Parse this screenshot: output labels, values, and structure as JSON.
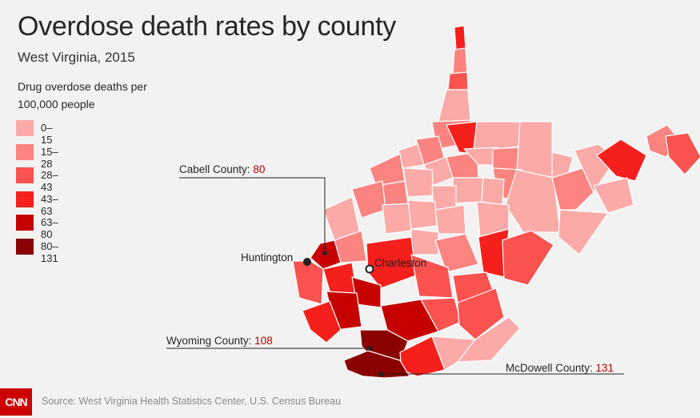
{
  "title": "Overdose death rates by county",
  "subtitle": "West Virginia, 2015",
  "legend": {
    "title": "Drug overdose deaths per 100,000 people",
    "items": [
      {
        "label": "0–15",
        "color": "#fbaaa8"
      },
      {
        "label": "15–28",
        "color": "#fb8481"
      },
      {
        "label": "28–43",
        "color": "#f9524f"
      },
      {
        "label": "43–63",
        "color": "#f51f1b"
      },
      {
        "label": "63–80",
        "color": "#c60000"
      },
      {
        "label": "80–131",
        "color": "#8b0000"
      }
    ]
  },
  "callouts": {
    "cabell": {
      "name": "Cabell County: ",
      "value": "80"
    },
    "wyoming": {
      "name": "Wyoming County: ",
      "value": "108"
    },
    "mcdowell": {
      "name": "McDowell County: ",
      "value": "131"
    }
  },
  "cities": {
    "huntington": "Huntington",
    "charleston": "Charleston"
  },
  "source": "Source: West Virginia Health Statistics Center, U.S. Census Bureau",
  "logo": "CNN"
}
